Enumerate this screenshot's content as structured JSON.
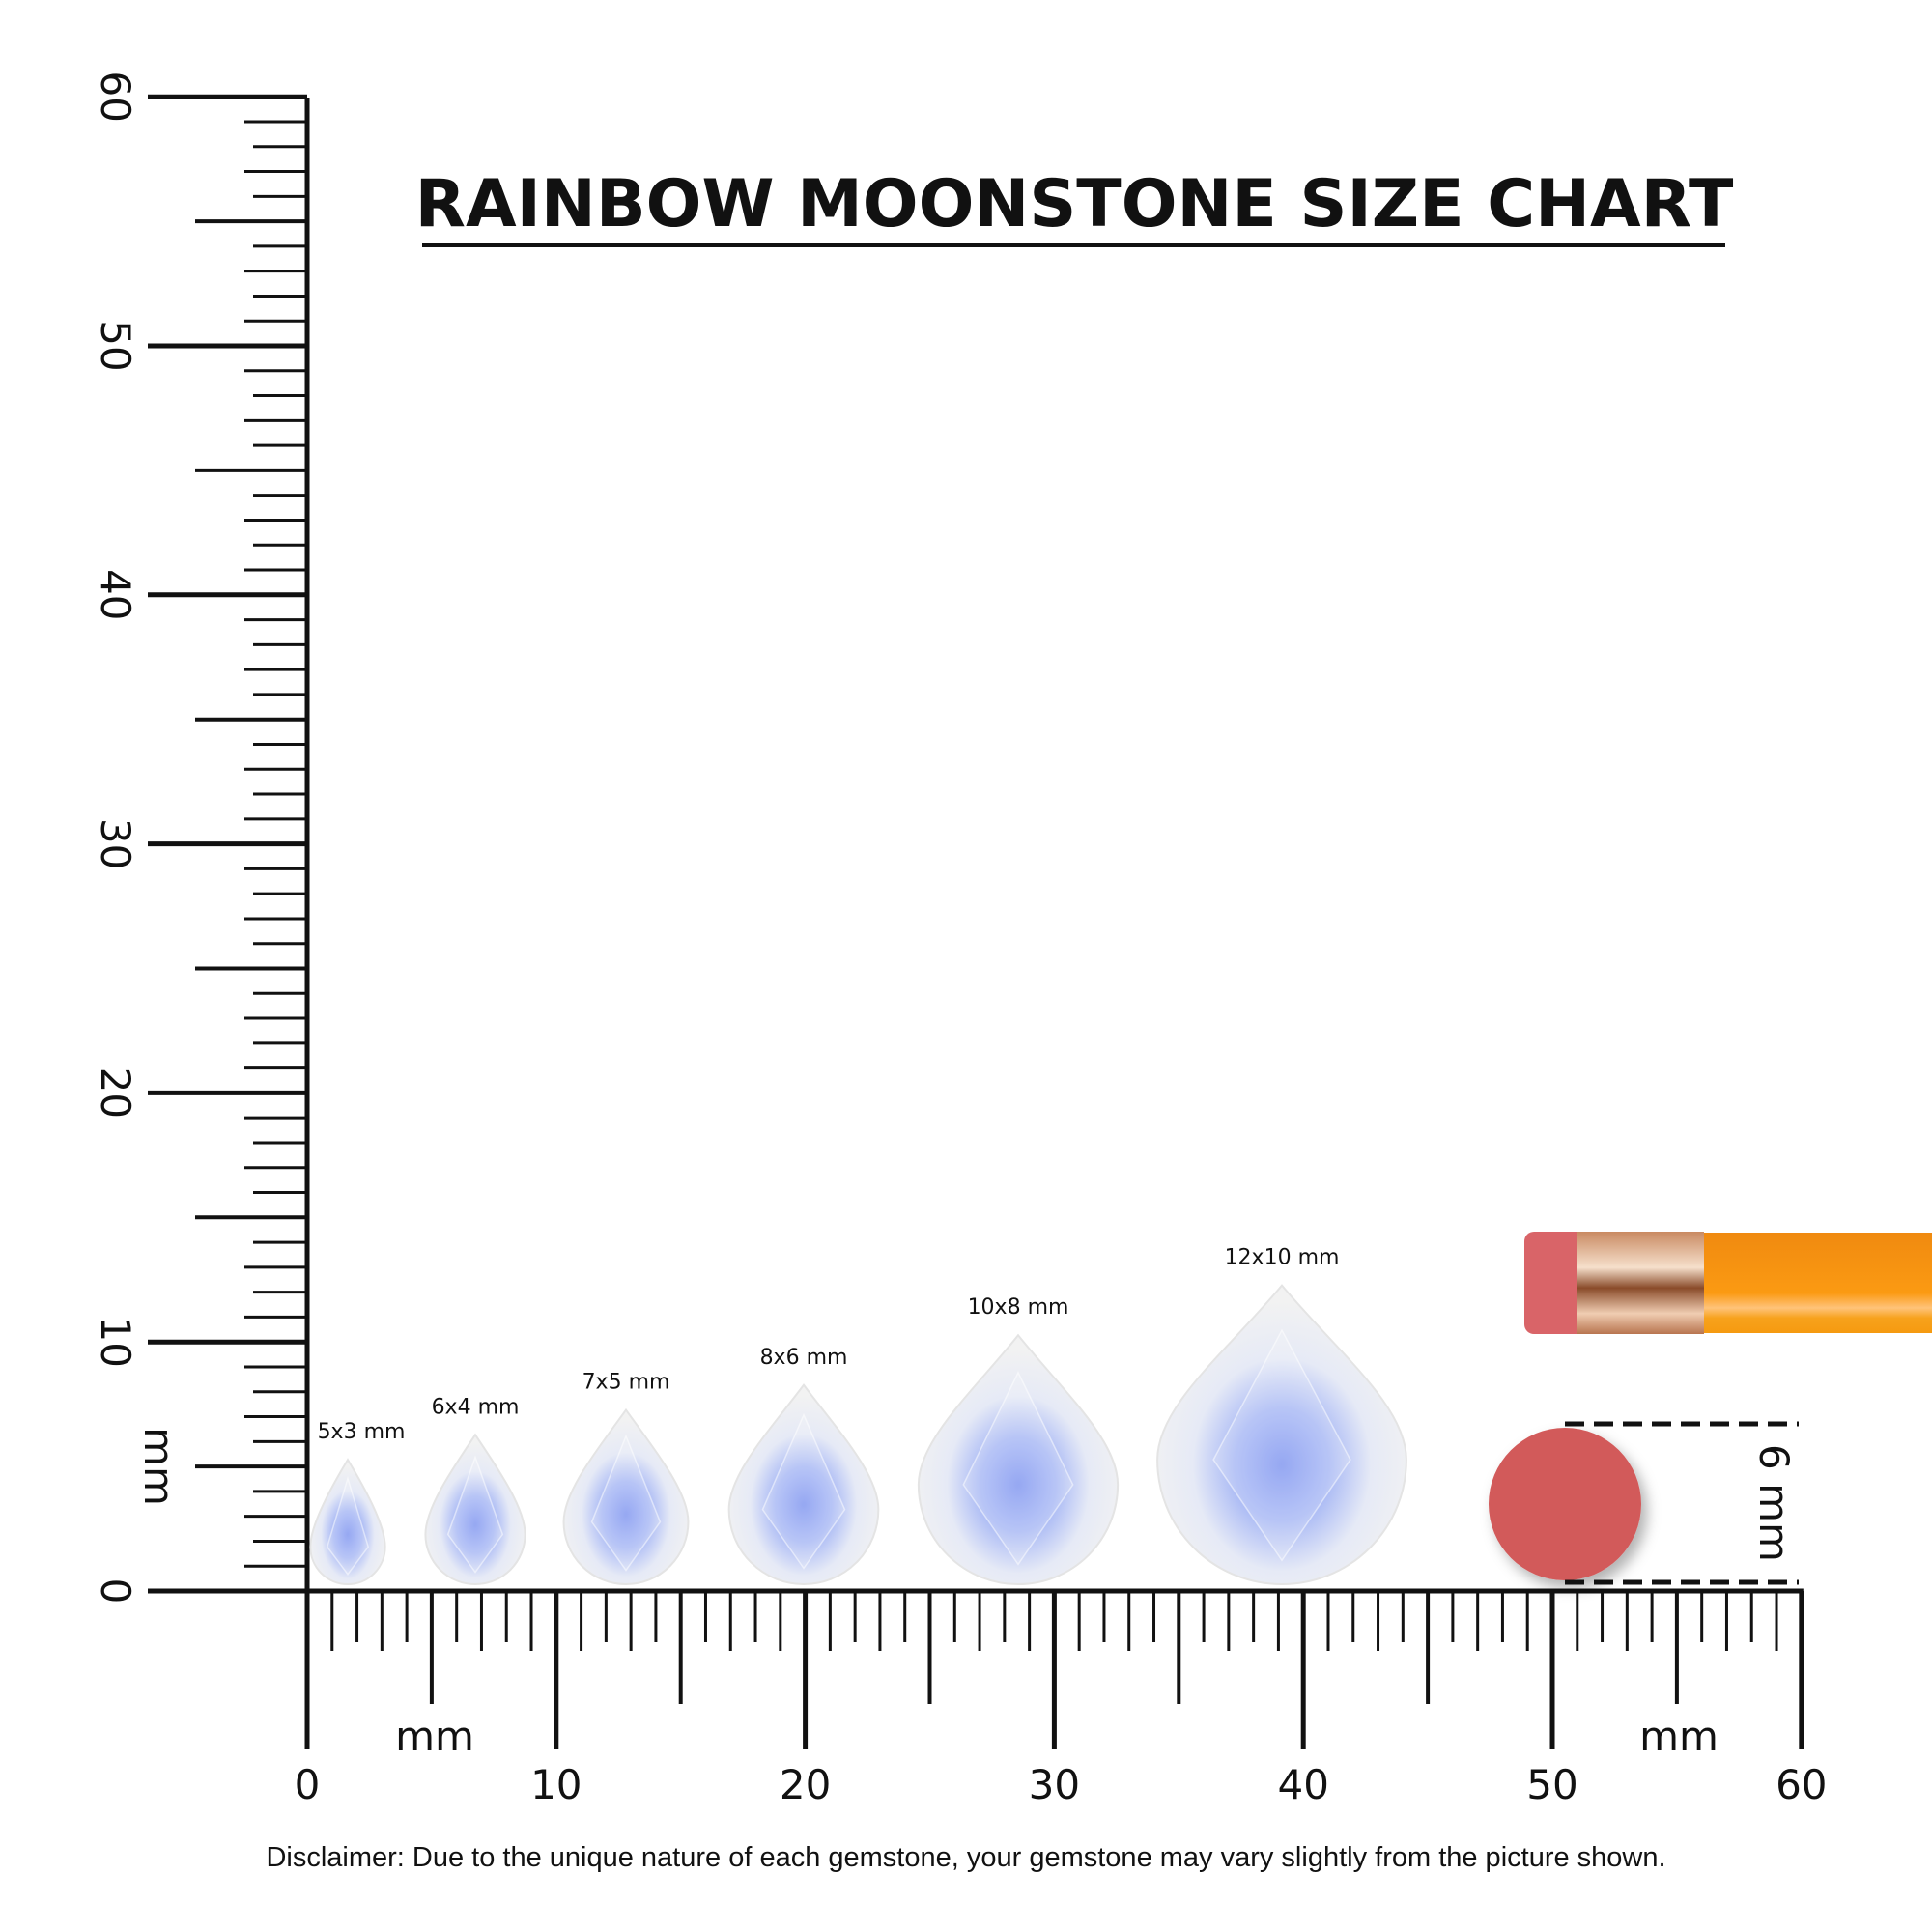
{
  "title": "RAINBOW MOONSTONE SIZE CHART",
  "ruler": {
    "unit_label": "mm",
    "range_mm": [
      0,
      60
    ],
    "tick_labels": [
      "0",
      "10",
      "20",
      "30",
      "40",
      "50",
      "60"
    ]
  },
  "gems": [
    {
      "label": "5x3 mm",
      "length_mm": 5,
      "width_mm": 3
    },
    {
      "label": "6x4 mm",
      "length_mm": 6,
      "width_mm": 4
    },
    {
      "label": "7x5 mm",
      "length_mm": 7,
      "width_mm": 5
    },
    {
      "label": "8x6 mm",
      "length_mm": 8,
      "width_mm": 6
    },
    {
      "label": "10x8 mm",
      "length_mm": 10,
      "width_mm": 8
    },
    {
      "label": "12x10 mm",
      "length_mm": 12,
      "width_mm": 10
    }
  ],
  "eraser_reference": {
    "label": "6 mm",
    "diameter_mm": 6,
    "color": "#d25a5a"
  },
  "colors": {
    "pencil_body": "#f7930f",
    "ferrule": "#d9a27a",
    "eraser": "#d96468",
    "gem_core": "#8fa6f2"
  },
  "disclaimer": "Disclaimer: Due to the unique nature of each gemstone, your gemstone may vary slightly from the picture shown."
}
